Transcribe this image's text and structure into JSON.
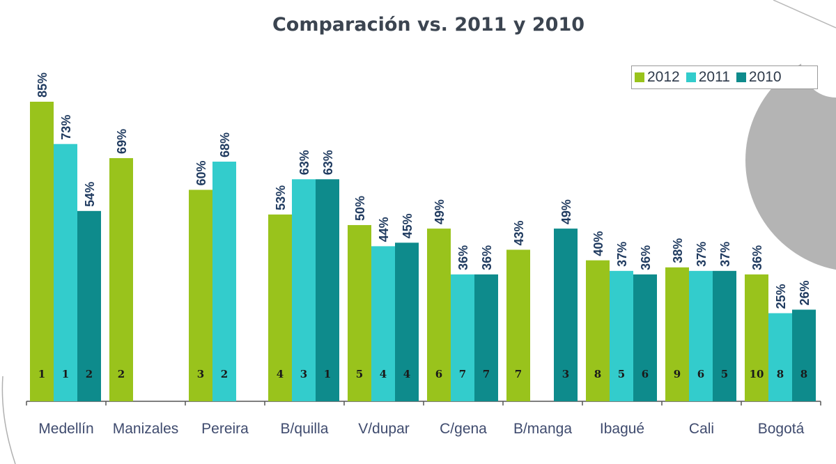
{
  "colors": {
    "2012": "#99c31c",
    "2011": "#33cccc",
    "2010": "#0e8b8c"
  },
  "chart_data": {
    "type": "bar",
    "title": "Comparación vs. 2011 y 2010",
    "categories": [
      "Medellín",
      "Manizales",
      "Pereira",
      "B/quilla",
      "V/dupar",
      "C/gena",
      "B/manga",
      "Ibagué",
      "Cali",
      "Bogotá"
    ],
    "series": [
      {
        "name": "2012",
        "values": [
          85,
          69,
          60,
          53,
          50,
          49,
          43,
          40,
          38,
          36
        ],
        "ranks": [
          "1",
          "2",
          "3",
          "4",
          "5",
          "6",
          "7",
          "8",
          "9",
          "10"
        ]
      },
      {
        "name": "2011",
        "values": [
          73,
          null,
          68,
          63,
          44,
          36,
          null,
          37,
          37,
          25
        ],
        "ranks": [
          "1",
          null,
          "2",
          "3",
          "4",
          "7",
          null,
          "5",
          "6",
          "8"
        ]
      },
      {
        "name": "2010",
        "values": [
          54,
          null,
          null,
          63,
          45,
          36,
          49,
          36,
          37,
          26
        ],
        "ranks": [
          "2",
          null,
          null,
          "1",
          "4",
          "7",
          "3",
          "6",
          "5",
          "8"
        ]
      }
    ],
    "value_suffix": "%",
    "ylim": [
      0,
      100
    ],
    "legend_position": "top-right",
    "grid": false
  }
}
